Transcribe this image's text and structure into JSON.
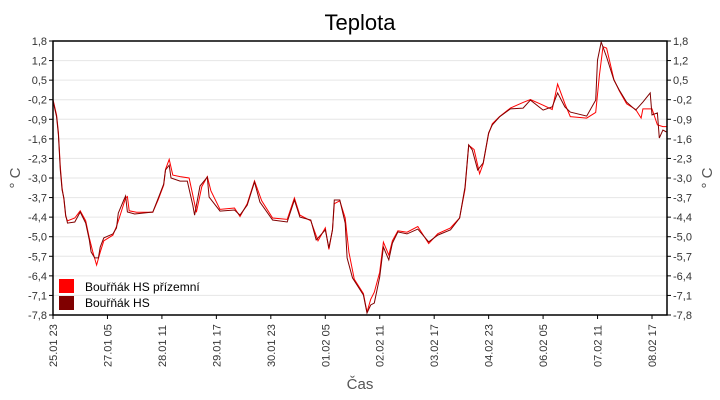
{
  "chart_data": {
    "type": "line",
    "title": "Teplota",
    "xlabel": "Čas",
    "ylabel": "° C",
    "ylabel_right": "° C",
    "x_unit": "hours since 25.01 23:00",
    "xlim": [
      0,
      338
    ],
    "ylim": [
      -7.8,
      1.8
    ],
    "yticks": [
      1.8,
      1.2,
      0.5,
      -0.2,
      -0.9,
      -1.6,
      -2.3,
      -3.0,
      -3.7,
      -4.4,
      -5.0,
      -5.7,
      -6.4,
      -7.1,
      -7.8
    ],
    "ytick_labels": [
      "1,8",
      "1,2",
      "0,5",
      "-0,2",
      "-0,9",
      "-1,6",
      "-2,3",
      "-3,0",
      "-3,7",
      "-4,4",
      "-5,0",
      "-5,7",
      "-6,4",
      "-7,1",
      "-7,8"
    ],
    "xticks": [
      0,
      30,
      60,
      90,
      120,
      150,
      180,
      210,
      240,
      270,
      300,
      330
    ],
    "xtick_labels": [
      "25.01 23",
      "27.01 05",
      "28.01 11",
      "29.01 17",
      "30.01 23",
      "01.02 05",
      "02.02 11",
      "03.02 17",
      "04.02 23",
      "06.02 05",
      "07.02 11",
      "08.02 17"
    ],
    "grid": true,
    "legend_position": "bottom-left",
    "series": [
      {
        "name": "Bouřňák HS přízemní",
        "color": "#ff0000",
        "x": [
          0,
          2,
          3,
          4,
          5,
          6,
          7,
          8,
          12,
          15,
          18,
          20,
          22,
          24,
          26,
          28,
          33,
          35,
          37,
          40,
          41,
          42,
          46,
          55,
          58,
          61,
          62,
          64,
          66,
          70,
          75,
          77,
          79,
          82,
          85,
          87,
          92,
          100,
          103,
          107,
          111,
          115,
          121,
          129,
          133,
          136,
          142,
          146,
          150,
          152,
          154,
          155,
          158,
          161,
          163,
          166,
          171,
          173,
          175,
          177,
          180,
          182,
          185,
          187,
          190,
          195,
          201,
          207,
          212,
          219,
          224,
          227,
          229,
          232,
          235,
          237,
          240,
          242,
          246,
          252,
          259,
          263,
          270,
          275,
          278,
          282,
          285,
          294,
          299,
          301,
          303,
          305,
          309,
          312,
          316,
          321,
          324,
          325,
          330,
          333,
          336,
          338
        ],
        "y": [
          -0.25,
          -0.8,
          -1.4,
          -2.6,
          -3.35,
          -3.75,
          -4.35,
          -4.5,
          -4.4,
          -4.15,
          -4.5,
          -5.1,
          -5.6,
          -6.05,
          -5.6,
          -5.2,
          -5.0,
          -4.7,
          -4.3,
          -3.7,
          -3.65,
          -4.15,
          -4.2,
          -4.2,
          -3.75,
          -3.25,
          -2.7,
          -2.35,
          -2.9,
          -2.95,
          -3.0,
          -3.6,
          -4.2,
          -3.3,
          -2.95,
          -3.45,
          -4.1,
          -4.05,
          -4.35,
          -3.9,
          -3.1,
          -3.8,
          -4.4,
          -4.45,
          -3.7,
          -4.3,
          -4.5,
          -5.2,
          -4.75,
          -5.5,
          -4.8,
          -3.9,
          -3.8,
          -4.4,
          -5.6,
          -6.55,
          -7.05,
          -7.7,
          -7.25,
          -7.0,
          -6.3,
          -5.25,
          -5.7,
          -5.2,
          -4.85,
          -4.9,
          -4.7,
          -5.3,
          -4.95,
          -4.75,
          -4.4,
          -3.4,
          -1.85,
          -2.0,
          -2.85,
          -2.5,
          -1.45,
          -1.1,
          -0.85,
          -0.55,
          -0.35,
          -0.25,
          -0.45,
          -0.6,
          0.29,
          -0.4,
          -0.85,
          -0.9,
          -0.7,
          0.6,
          1.6,
          1.55,
          0.45,
          0.05,
          -0.4,
          -0.6,
          -0.9,
          -0.58,
          -0.58,
          -1.14,
          -1.2,
          -1.2
        ]
      },
      {
        "name": "Bouřňák HS",
        "color": "#800000",
        "x": [
          0,
          2,
          3,
          4,
          5,
          6,
          7,
          8,
          12,
          15,
          18,
          20,
          21,
          23,
          25,
          26,
          28,
          33,
          35,
          36,
          39,
          40,
          41,
          45,
          55,
          58,
          61,
          62,
          64,
          65,
          70,
          74,
          77,
          78,
          81,
          85,
          86,
          92,
          100,
          103,
          107,
          111,
          114,
          121,
          129,
          133,
          136,
          142,
          145,
          150,
          152,
          154,
          155,
          158,
          161,
          162,
          165,
          171,
          173,
          175,
          177,
          180,
          182,
          185,
          187,
          190,
          195,
          201,
          207,
          212,
          219,
          224,
          227,
          229,
          231,
          234,
          237,
          240,
          242,
          246,
          252,
          259,
          263,
          270,
          275,
          278,
          282,
          285,
          294,
          299,
          300,
          302,
          305,
          309,
          312,
          316,
          321,
          325,
          329,
          330,
          333,
          334,
          336,
          338
        ],
        "y": [
          -0.3,
          -0.86,
          -1.49,
          -2.72,
          -3.42,
          -3.7,
          -4.3,
          -4.58,
          -4.54,
          -4.19,
          -4.58,
          -5.17,
          -5.59,
          -5.8,
          -5.8,
          -5.42,
          -5.1,
          -4.96,
          -4.75,
          -4.23,
          -3.77,
          -3.63,
          -4.19,
          -4.26,
          -4.19,
          -3.7,
          -3.21,
          -2.72,
          -2.55,
          -3.0,
          -3.11,
          -3.11,
          -3.95,
          -4.3,
          -3.28,
          -2.97,
          -3.67,
          -4.16,
          -4.12,
          -4.3,
          -3.95,
          -3.14,
          -3.84,
          -4.47,
          -4.54,
          -3.77,
          -4.37,
          -4.47,
          -5.17,
          -4.82,
          -5.45,
          -4.82,
          -3.77,
          -3.77,
          -4.58,
          -5.8,
          -6.5,
          -7.1,
          -7.73,
          -7.45,
          -7.38,
          -6.47,
          -5.42,
          -5.87,
          -5.28,
          -4.89,
          -4.96,
          -4.79,
          -5.24,
          -5.0,
          -4.82,
          -4.4,
          -3.32,
          -1.84,
          -2.02,
          -2.72,
          -2.47,
          -1.42,
          -1.14,
          -0.86,
          -0.58,
          -0.55,
          -0.27,
          -0.62,
          -0.51,
          -0.02,
          -0.51,
          -0.69,
          -0.83,
          -0.27,
          1.13,
          1.76,
          1.24,
          0.43,
          0.08,
          -0.34,
          -0.62,
          -0.34,
          -0.02,
          -0.79,
          -0.72,
          -1.6,
          -1.32,
          -1.39
        ]
      }
    ]
  }
}
